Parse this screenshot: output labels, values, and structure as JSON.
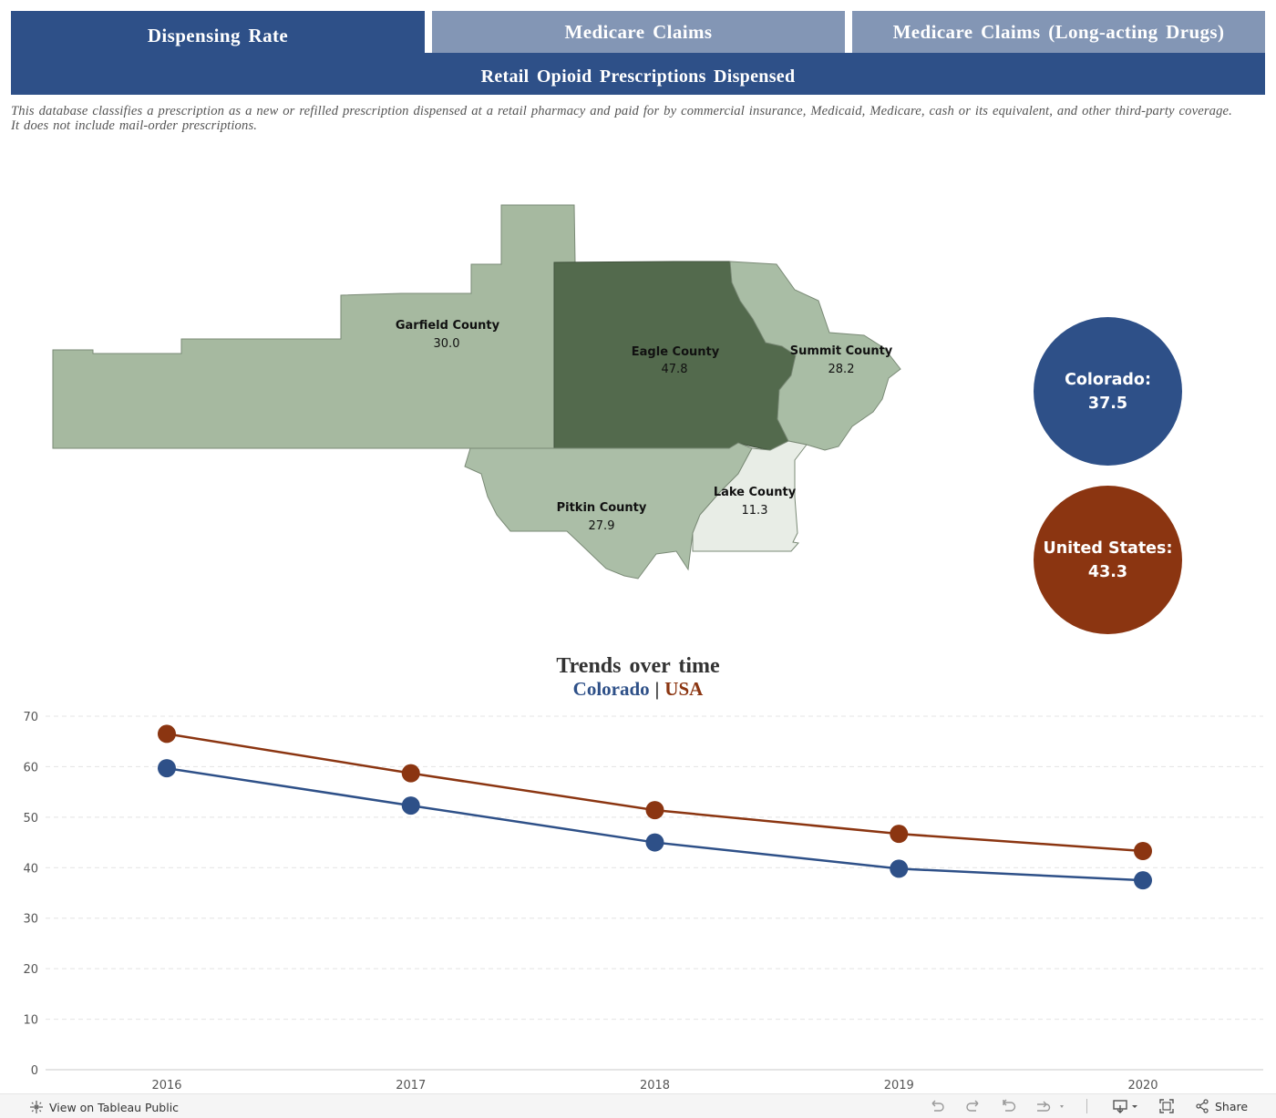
{
  "tabs": [
    {
      "label": "Dispensing Rate",
      "active": true
    },
    {
      "label": "Medicare Claims",
      "active": false
    },
    {
      "label": "Medicare Claims (Long-acting Drugs)",
      "active": false
    }
  ],
  "subheader": "Retail Opioid Prescriptions Dispensed",
  "note": "This database classifies a prescription as a new or refilled prescription dispensed at a retail pharmacy and paid for by commercial insurance, Medicaid, Medicare, cash or its equivalent, and other third-party coverage. It does not include mail-order prescriptions.",
  "map": {
    "counties": [
      {
        "name": "Garfield County",
        "value": "30.0",
        "color": "#a6b9a0"
      },
      {
        "name": "Eagle County",
        "value": "47.8",
        "color": "#536a4d"
      },
      {
        "name": "Summit County",
        "value": "28.2",
        "color": "#a9bda5"
      },
      {
        "name": "Pitkin County",
        "value": "27.9",
        "color": "#abbea7"
      },
      {
        "name": "Lake County",
        "value": "11.3",
        "color": "#e8ede6"
      }
    ]
  },
  "summary": {
    "colorado_label": "Colorado:",
    "colorado_value": "37.5",
    "colorado_color": "#2e5088",
    "us_label": "United States:",
    "us_value": "43.3",
    "us_color": "#8b3511"
  },
  "trend": {
    "title": "Trends over time",
    "legend_co": "Colorado",
    "legend_sep": "|",
    "legend_us": "USA"
  },
  "chart_data": {
    "type": "line",
    "x": [
      "2016",
      "2017",
      "2018",
      "2019",
      "2020"
    ],
    "series": [
      {
        "name": "Colorado",
        "values": [
          59.7,
          52.3,
          45.0,
          39.8,
          37.5
        ],
        "color": "#2e5088"
      },
      {
        "name": "USA",
        "values": [
          66.5,
          58.7,
          51.4,
          46.7,
          43.3
        ],
        "color": "#8b3511"
      }
    ],
    "yticks": [
      0,
      10,
      20,
      30,
      40,
      50,
      60,
      70
    ],
    "ylim": [
      0,
      70
    ],
    "grid": true
  },
  "footer": {
    "view_label": "View on Tableau Public",
    "share_label": "Share",
    "icons": [
      "undo-icon",
      "redo-icon",
      "revert-icon",
      "refresh-icon",
      "download-icon",
      "fullscreen-icon",
      "share-icon"
    ]
  }
}
